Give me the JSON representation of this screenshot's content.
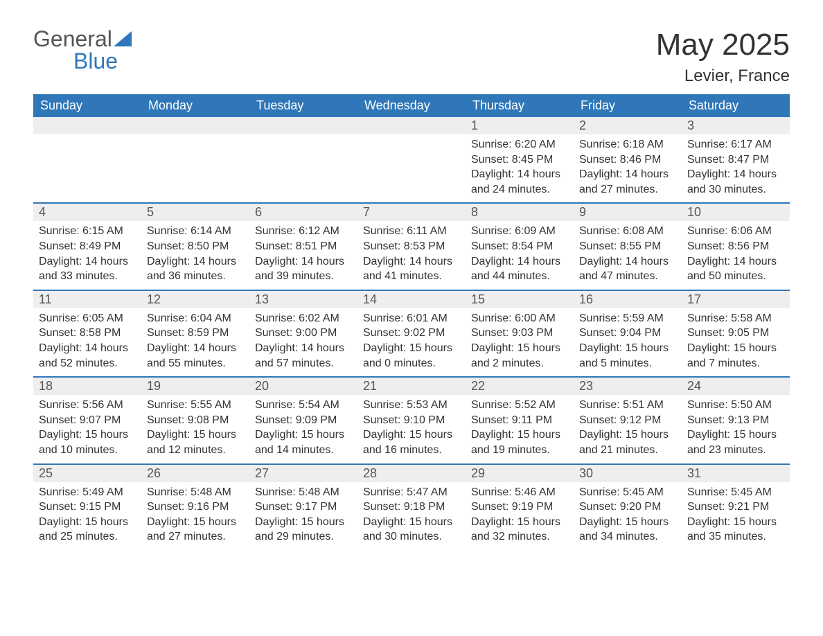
{
  "brand": {
    "name_part1": "General",
    "name_part2": "Blue",
    "text_color": "#555555",
    "accent_color": "#2f77b8"
  },
  "title": "May 2025",
  "location": "Levier, France",
  "colors": {
    "header_bg": "#2f77b8",
    "header_text": "#ffffff",
    "daynum_bg": "#eeeeee",
    "daynum_text": "#555555",
    "body_text": "#333333",
    "page_bg": "#ffffff",
    "row_border": "#2f77b8"
  },
  "day_headers": [
    "Sunday",
    "Monday",
    "Tuesday",
    "Wednesday",
    "Thursday",
    "Friday",
    "Saturday"
  ],
  "weeks": [
    [
      {
        "day": "",
        "sunrise": "",
        "sunset": "",
        "daylight": ""
      },
      {
        "day": "",
        "sunrise": "",
        "sunset": "",
        "daylight": ""
      },
      {
        "day": "",
        "sunrise": "",
        "sunset": "",
        "daylight": ""
      },
      {
        "day": "",
        "sunrise": "",
        "sunset": "",
        "daylight": ""
      },
      {
        "day": "1",
        "sunrise": "Sunrise: 6:20 AM",
        "sunset": "Sunset: 8:45 PM",
        "daylight": "Daylight: 14 hours and 24 minutes."
      },
      {
        "day": "2",
        "sunrise": "Sunrise: 6:18 AM",
        "sunset": "Sunset: 8:46 PM",
        "daylight": "Daylight: 14 hours and 27 minutes."
      },
      {
        "day": "3",
        "sunrise": "Sunrise: 6:17 AM",
        "sunset": "Sunset: 8:47 PM",
        "daylight": "Daylight: 14 hours and 30 minutes."
      }
    ],
    [
      {
        "day": "4",
        "sunrise": "Sunrise: 6:15 AM",
        "sunset": "Sunset: 8:49 PM",
        "daylight": "Daylight: 14 hours and 33 minutes."
      },
      {
        "day": "5",
        "sunrise": "Sunrise: 6:14 AM",
        "sunset": "Sunset: 8:50 PM",
        "daylight": "Daylight: 14 hours and 36 minutes."
      },
      {
        "day": "6",
        "sunrise": "Sunrise: 6:12 AM",
        "sunset": "Sunset: 8:51 PM",
        "daylight": "Daylight: 14 hours and 39 minutes."
      },
      {
        "day": "7",
        "sunrise": "Sunrise: 6:11 AM",
        "sunset": "Sunset: 8:53 PM",
        "daylight": "Daylight: 14 hours and 41 minutes."
      },
      {
        "day": "8",
        "sunrise": "Sunrise: 6:09 AM",
        "sunset": "Sunset: 8:54 PM",
        "daylight": "Daylight: 14 hours and 44 minutes."
      },
      {
        "day": "9",
        "sunrise": "Sunrise: 6:08 AM",
        "sunset": "Sunset: 8:55 PM",
        "daylight": "Daylight: 14 hours and 47 minutes."
      },
      {
        "day": "10",
        "sunrise": "Sunrise: 6:06 AM",
        "sunset": "Sunset: 8:56 PM",
        "daylight": "Daylight: 14 hours and 50 minutes."
      }
    ],
    [
      {
        "day": "11",
        "sunrise": "Sunrise: 6:05 AM",
        "sunset": "Sunset: 8:58 PM",
        "daylight": "Daylight: 14 hours and 52 minutes."
      },
      {
        "day": "12",
        "sunrise": "Sunrise: 6:04 AM",
        "sunset": "Sunset: 8:59 PM",
        "daylight": "Daylight: 14 hours and 55 minutes."
      },
      {
        "day": "13",
        "sunrise": "Sunrise: 6:02 AM",
        "sunset": "Sunset: 9:00 PM",
        "daylight": "Daylight: 14 hours and 57 minutes."
      },
      {
        "day": "14",
        "sunrise": "Sunrise: 6:01 AM",
        "sunset": "Sunset: 9:02 PM",
        "daylight": "Daylight: 15 hours and 0 minutes."
      },
      {
        "day": "15",
        "sunrise": "Sunrise: 6:00 AM",
        "sunset": "Sunset: 9:03 PM",
        "daylight": "Daylight: 15 hours and 2 minutes."
      },
      {
        "day": "16",
        "sunrise": "Sunrise: 5:59 AM",
        "sunset": "Sunset: 9:04 PM",
        "daylight": "Daylight: 15 hours and 5 minutes."
      },
      {
        "day": "17",
        "sunrise": "Sunrise: 5:58 AM",
        "sunset": "Sunset: 9:05 PM",
        "daylight": "Daylight: 15 hours and 7 minutes."
      }
    ],
    [
      {
        "day": "18",
        "sunrise": "Sunrise: 5:56 AM",
        "sunset": "Sunset: 9:07 PM",
        "daylight": "Daylight: 15 hours and 10 minutes."
      },
      {
        "day": "19",
        "sunrise": "Sunrise: 5:55 AM",
        "sunset": "Sunset: 9:08 PM",
        "daylight": "Daylight: 15 hours and 12 minutes."
      },
      {
        "day": "20",
        "sunrise": "Sunrise: 5:54 AM",
        "sunset": "Sunset: 9:09 PM",
        "daylight": "Daylight: 15 hours and 14 minutes."
      },
      {
        "day": "21",
        "sunrise": "Sunrise: 5:53 AM",
        "sunset": "Sunset: 9:10 PM",
        "daylight": "Daylight: 15 hours and 16 minutes."
      },
      {
        "day": "22",
        "sunrise": "Sunrise: 5:52 AM",
        "sunset": "Sunset: 9:11 PM",
        "daylight": "Daylight: 15 hours and 19 minutes."
      },
      {
        "day": "23",
        "sunrise": "Sunrise: 5:51 AM",
        "sunset": "Sunset: 9:12 PM",
        "daylight": "Daylight: 15 hours and 21 minutes."
      },
      {
        "day": "24",
        "sunrise": "Sunrise: 5:50 AM",
        "sunset": "Sunset: 9:13 PM",
        "daylight": "Daylight: 15 hours and 23 minutes."
      }
    ],
    [
      {
        "day": "25",
        "sunrise": "Sunrise: 5:49 AM",
        "sunset": "Sunset: 9:15 PM",
        "daylight": "Daylight: 15 hours and 25 minutes."
      },
      {
        "day": "26",
        "sunrise": "Sunrise: 5:48 AM",
        "sunset": "Sunset: 9:16 PM",
        "daylight": "Daylight: 15 hours and 27 minutes."
      },
      {
        "day": "27",
        "sunrise": "Sunrise: 5:48 AM",
        "sunset": "Sunset: 9:17 PM",
        "daylight": "Daylight: 15 hours and 29 minutes."
      },
      {
        "day": "28",
        "sunrise": "Sunrise: 5:47 AM",
        "sunset": "Sunset: 9:18 PM",
        "daylight": "Daylight: 15 hours and 30 minutes."
      },
      {
        "day": "29",
        "sunrise": "Sunrise: 5:46 AM",
        "sunset": "Sunset: 9:19 PM",
        "daylight": "Daylight: 15 hours and 32 minutes."
      },
      {
        "day": "30",
        "sunrise": "Sunrise: 5:45 AM",
        "sunset": "Sunset: 9:20 PM",
        "daylight": "Daylight: 15 hours and 34 minutes."
      },
      {
        "day": "31",
        "sunrise": "Sunrise: 5:45 AM",
        "sunset": "Sunset: 9:21 PM",
        "daylight": "Daylight: 15 hours and 35 minutes."
      }
    ]
  ]
}
